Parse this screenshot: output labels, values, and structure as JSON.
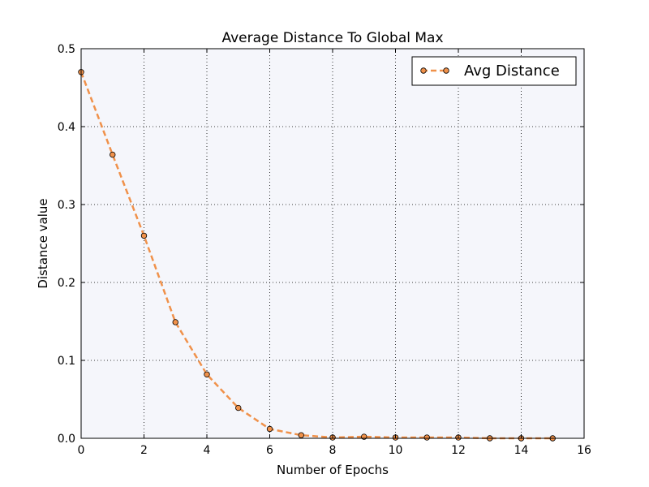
{
  "colors": {
    "figure_background": "#ffffff",
    "plot_background": "#f5f6fb",
    "series": "#f0914a",
    "marker_edge": "#000000",
    "grid": "#000000"
  },
  "chart_data": {
    "type": "line",
    "title": "Average Distance To Global Max",
    "xlabel": "Number of Epochs",
    "ylabel": "Distance value",
    "xlim": [
      0,
      16
    ],
    "ylim": [
      0,
      0.5
    ],
    "xticks": [
      0,
      2,
      4,
      6,
      8,
      10,
      12,
      14,
      16
    ],
    "yticks": [
      0.0,
      0.1,
      0.2,
      0.3,
      0.4,
      0.5
    ],
    "xtick_labels": [
      "0",
      "2",
      "4",
      "6",
      "8",
      "10",
      "12",
      "14",
      "16"
    ],
    "ytick_labels": [
      "0.0",
      "0.1",
      "0.2",
      "0.3",
      "0.4",
      "0.5"
    ],
    "grid": true,
    "grid_style": "dotted",
    "legend_position": "top-right",
    "series": [
      {
        "name": "Avg Distance",
        "color": "#f0914a",
        "line_style": "dashed",
        "marker": "circle",
        "x": [
          0,
          1,
          2,
          3,
          4,
          5,
          6,
          7,
          8,
          9,
          10,
          11,
          12,
          13,
          14,
          15
        ],
        "y": [
          0.47,
          0.364,
          0.26,
          0.149,
          0.082,
          0.039,
          0.012,
          0.004,
          0.001,
          0.002,
          0.001,
          0.001,
          0.001,
          0.0,
          0.0,
          0.0
        ]
      }
    ]
  }
}
